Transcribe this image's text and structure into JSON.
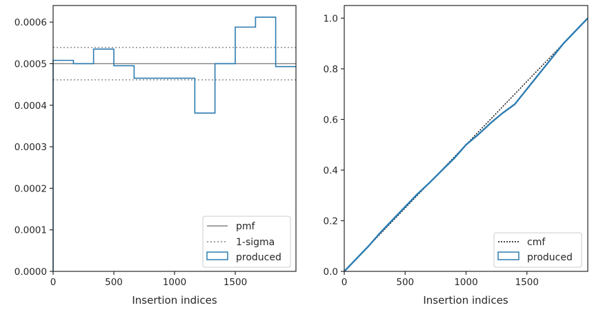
{
  "colors": {
    "produced": "#2b7bb0",
    "reference": "#808080",
    "cmf": "#000000",
    "axes": "#262626"
  },
  "chart_data": [
    {
      "type": "line",
      "step": true,
      "xlabel": "Insertion indices",
      "ylabel": "",
      "xlim": [
        0,
        2000
      ],
      "ylim": [
        0,
        0.00064
      ],
      "xticks": [
        0,
        500,
        1000,
        1500
      ],
      "xtick_labels": [
        "0",
        "500",
        "1000",
        "1500"
      ],
      "yticks": [
        0,
        0.0001,
        0.0002,
        0.0003,
        0.0004,
        0.0005,
        0.0006
      ],
      "ytick_labels": [
        "0.0000",
        "0.0001",
        "0.0002",
        "0.0003",
        "0.0004",
        "0.0005",
        "0.0006"
      ],
      "legend_position": "lower-right",
      "series": [
        {
          "name": "pmf",
          "style": "solid",
          "y": 0.0005
        },
        {
          "name": "1-sigma",
          "style": "dotted",
          "y": [
            0.000539,
            0.000461
          ]
        },
        {
          "name": "produced",
          "style": "step",
          "bin_edges": [
            0,
            167,
            333,
            500,
            667,
            833,
            1000,
            1167,
            1333,
            1500,
            1667,
            1833,
            2000
          ],
          "values": [
            0.000508,
            0.0005,
            0.000535,
            0.000495,
            0.000465,
            0.000465,
            0.000465,
            0.000381,
            0.0005,
            0.000588,
            0.000612,
            0.000493
          ]
        }
      ]
    },
    {
      "type": "line",
      "xlabel": "Insertion indices",
      "ylabel": "",
      "xlim": [
        0,
        2000
      ],
      "ylim": [
        0,
        1.05
      ],
      "xticks": [
        0,
        500,
        1000,
        1500
      ],
      "xtick_labels": [
        "0",
        "500",
        "1000",
        "1500"
      ],
      "yticks": [
        0,
        0.2,
        0.4,
        0.6,
        0.8,
        1.0
      ],
      "ytick_labels": [
        "0.0",
        "0.2",
        "0.4",
        "0.6",
        "0.8",
        "1.0"
      ],
      "legend_position": "lower-right",
      "series": [
        {
          "name": "cmf",
          "style": "dotted",
          "x": [
            0,
            2000
          ],
          "y": [
            0,
            1.0
          ]
        },
        {
          "name": "produced",
          "style": "solid",
          "x": [
            0,
            100,
            200,
            300,
            400,
            500,
            600,
            700,
            800,
            900,
            1000,
            1100,
            1200,
            1300,
            1400,
            1500,
            1600,
            1700,
            1800,
            1900,
            2000
          ],
          "y": [
            0,
            0.05,
            0.1,
            0.155,
            0.205,
            0.255,
            0.305,
            0.35,
            0.398,
            0.445,
            0.5,
            0.54,
            0.585,
            0.625,
            0.66,
            0.72,
            0.78,
            0.84,
            0.9,
            0.95,
            1.0
          ]
        }
      ]
    }
  ]
}
